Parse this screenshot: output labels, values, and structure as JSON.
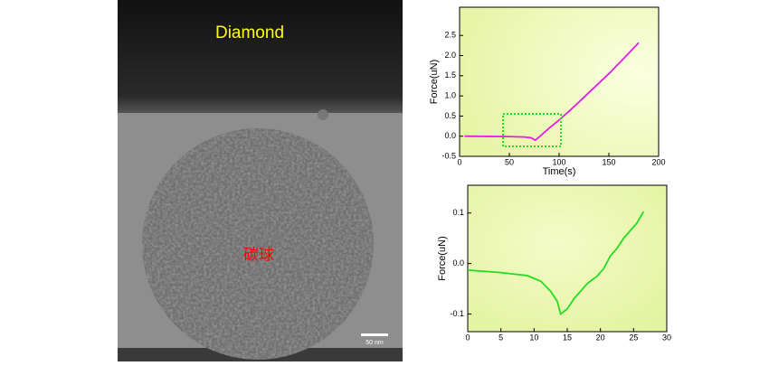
{
  "image": {
    "top_label": "Diamond",
    "center_label": "碳球",
    "scale_label": "50 nm"
  },
  "chart_data": [
    {
      "type": "line",
      "x_label": "Time(s)",
      "y_label": "Force(uN)",
      "xlim": [
        0,
        200
      ],
      "xticks": [
        0,
        50,
        100,
        150,
        200
      ],
      "ylim": [
        -0.5,
        3.2
      ],
      "yticks": [
        -0.5,
        {
          "value": 0,
          "label": "0.0"
        },
        0.5,
        {
          "value": 1,
          "label": "1.0"
        },
        1.5,
        {
          "value": 2,
          "label": "2.0"
        },
        2.5
      ],
      "series": [
        {
          "color": "#e020e0",
          "x": [
            5,
            30,
            50,
            65,
            72,
            76,
            80,
            90,
            100,
            110,
            120,
            135,
            150,
            165,
            180
          ],
          "values": [
            0.0,
            -0.005,
            -0.01,
            -0.02,
            -0.04,
            -0.1,
            -0.02,
            0.2,
            0.4,
            0.62,
            0.85,
            1.2,
            1.55,
            1.93,
            2.32
          ]
        }
      ]
    },
    {
      "type": "line",
      "y_label": "Force(uN)",
      "xlim": [
        0,
        30
      ],
      "xticks": [
        0,
        5,
        10,
        15,
        20,
        25,
        30
      ],
      "ylim": [
        -0.135,
        0.155
      ],
      "yticks": [
        -0.1,
        {
          "value": 0,
          "label": "0.0"
        },
        0.1
      ],
      "series": [
        {
          "color": "#22dd22",
          "x": [
            0,
            5,
            9,
            11,
            12.5,
            13.5,
            14,
            15,
            16,
            17,
            18,
            19.5,
            20.5,
            21.5,
            22.5,
            23.5,
            24.5,
            25.5,
            26.5
          ],
          "values": [
            -0.013,
            -0.018,
            -0.024,
            -0.035,
            -0.055,
            -0.075,
            -0.1,
            -0.09,
            -0.07,
            -0.055,
            -0.04,
            -0.025,
            -0.01,
            0.015,
            0.03,
            0.05,
            0.065,
            0.08,
            0.103
          ]
        }
      ]
    }
  ]
}
